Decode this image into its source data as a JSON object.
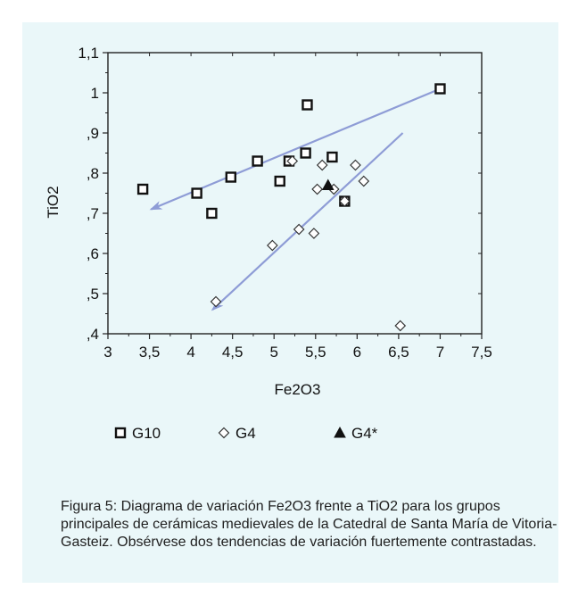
{
  "chart_data": {
    "type": "scatter",
    "title": "",
    "xlabel": "Fe2O3",
    "ylabel": "TiO2",
    "xlim": [
      3,
      7.5
    ],
    "ylim": [
      0.4,
      1.1
    ],
    "x_ticks": [
      3,
      3.5,
      4,
      4.5,
      5,
      5.5,
      6,
      6.5,
      7,
      7.5
    ],
    "x_tick_labels": [
      "3",
      "3,5",
      "4",
      "4,5",
      "5",
      "5,5",
      "6",
      "6,5",
      "7",
      "7,5"
    ],
    "y_ticks": [
      0.4,
      0.5,
      0.6,
      0.7,
      0.8,
      0.9,
      1.0,
      1.1
    ],
    "y_tick_labels": [
      ",4",
      ",5",
      ",6",
      ",7",
      ",8",
      ",9",
      "1",
      "1,1"
    ],
    "grid": false,
    "legend_position": "bottom",
    "series": [
      {
        "name": "G10",
        "marker": "square",
        "color": "#111111",
        "points": [
          [
            3.42,
            0.76
          ],
          [
            4.07,
            0.75
          ],
          [
            4.25,
            0.7
          ],
          [
            4.48,
            0.79
          ],
          [
            4.8,
            0.83
          ],
          [
            5.07,
            0.78
          ],
          [
            5.18,
            0.83
          ],
          [
            5.38,
            0.85
          ],
          [
            5.4,
            0.97
          ],
          [
            5.7,
            0.84
          ],
          [
            5.85,
            0.73
          ],
          [
            7.0,
            1.01
          ]
        ]
      },
      {
        "name": "G4",
        "marker": "diamond",
        "color": "#111111",
        "points": [
          [
            4.3,
            0.48
          ],
          [
            4.98,
            0.62
          ],
          [
            5.3,
            0.66
          ],
          [
            5.48,
            0.65
          ],
          [
            5.22,
            0.83
          ],
          [
            5.52,
            0.76
          ],
          [
            5.58,
            0.82
          ],
          [
            5.72,
            0.76
          ],
          [
            5.85,
            0.73
          ],
          [
            5.98,
            0.82
          ],
          [
            6.08,
            0.78
          ],
          [
            6.52,
            0.42
          ]
        ]
      },
      {
        "name": "G4*",
        "marker": "triangle",
        "color": "#111111",
        "points": [
          [
            5.65,
            0.77
          ]
        ]
      }
    ],
    "trend_arrows": [
      {
        "from": [
          7.0,
          1.01
        ],
        "to": [
          3.52,
          0.71
        ],
        "color": "#8e9cd6"
      },
      {
        "from": [
          6.55,
          0.9
        ],
        "to": [
          4.26,
          0.46
        ],
        "color": "#8e9cd6"
      }
    ]
  },
  "caption": "Figura 5: Diagrama de variación Fe2O3 frente a TiO2 para los grupos principales de cerámicas medievales de la Catedral de Santa María de Vitoria-Gasteiz. Obsérvese dos tendencias de variación fuertemente contrastadas."
}
